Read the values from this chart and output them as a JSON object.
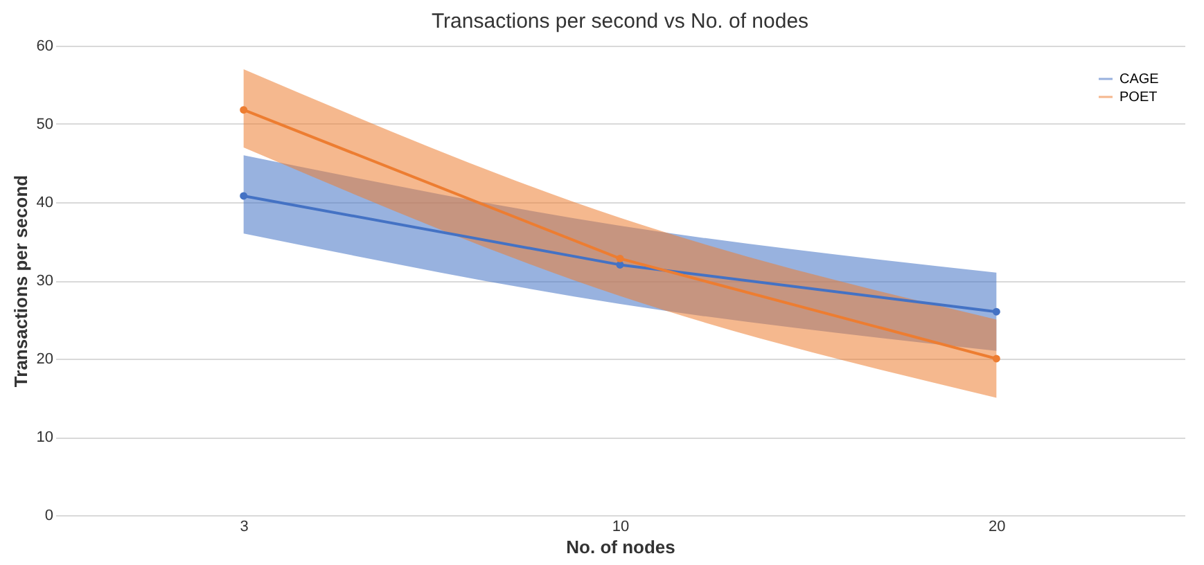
{
  "chart_data": {
    "type": "line",
    "title": "Transactions per second vs No. of nodes",
    "xlabel": "No. of nodes",
    "ylabel": "Transactions per second",
    "categories": [
      "3",
      "10",
      "20"
    ],
    "series": [
      {
        "name": "CAGE",
        "color": "#4472c4",
        "values": [
          40.8,
          32,
          26
        ],
        "lower": [
          36,
          27,
          21
        ],
        "upper": [
          46,
          37,
          31
        ]
      },
      {
        "name": "POET",
        "color": "#ed7d31",
        "values": [
          51.8,
          32.8,
          20
        ],
        "lower": [
          47,
          28,
          15
        ],
        "upper": [
          57,
          38,
          25
        ]
      }
    ],
    "ylim": [
      0,
      60
    ],
    "yticks": [
      0,
      10,
      20,
      30,
      40,
      50,
      60
    ],
    "grid": "y",
    "legend": "top right",
    "marker": "circle",
    "line_style": "solid"
  }
}
